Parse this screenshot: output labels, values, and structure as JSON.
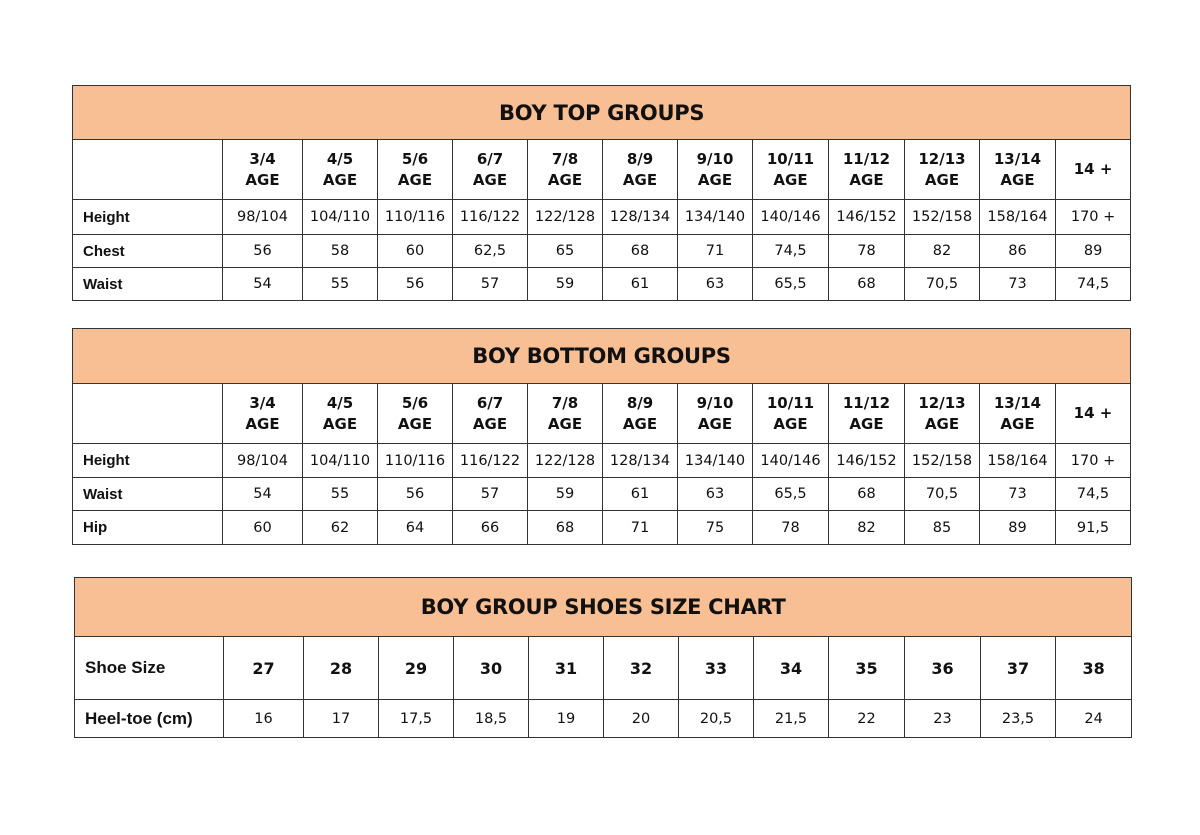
{
  "colors": {
    "header_fill": "#f8bf94",
    "border": "#333333"
  },
  "top": {
    "title": "BOY TOP GROUPS",
    "columns": [
      [
        "3/4",
        "AGE"
      ],
      [
        "4/5",
        "AGE"
      ],
      [
        "5/6",
        "AGE"
      ],
      [
        "6/7",
        "AGE"
      ],
      [
        "7/8",
        "AGE"
      ],
      [
        "8/9",
        "AGE"
      ],
      [
        "9/10",
        "AGE"
      ],
      [
        "10/11",
        "AGE"
      ],
      [
        "11/12",
        "AGE"
      ],
      [
        "12/13",
        "AGE"
      ],
      [
        "13/14",
        "AGE"
      ],
      [
        "14 +",
        ""
      ]
    ],
    "rows": [
      {
        "label": "Height",
        "values": [
          "98/104",
          "104/110",
          "110/116",
          "116/122",
          "122/128",
          "128/134",
          "134/140",
          "140/146",
          "146/152",
          "152/158",
          "158/164",
          "170 +"
        ]
      },
      {
        "label": "Chest",
        "values": [
          "56",
          "58",
          "60",
          "62,5",
          "65",
          "68",
          "71",
          "74,5",
          "78",
          "82",
          "86",
          "89"
        ]
      },
      {
        "label": "Waist",
        "values": [
          "54",
          "55",
          "56",
          "57",
          "59",
          "61",
          "63",
          "65,5",
          "68",
          "70,5",
          "73",
          "74,5"
        ]
      }
    ]
  },
  "bottom": {
    "title": "BOY BOTTOM GROUPS",
    "columns": [
      [
        "3/4",
        "AGE"
      ],
      [
        "4/5",
        "AGE"
      ],
      [
        "5/6",
        "AGE"
      ],
      [
        "6/7",
        "AGE"
      ],
      [
        "7/8",
        "AGE"
      ],
      [
        "8/9",
        "AGE"
      ],
      [
        "9/10",
        "AGE"
      ],
      [
        "10/11",
        "AGE"
      ],
      [
        "11/12",
        "AGE"
      ],
      [
        "12/13",
        "AGE"
      ],
      [
        "13/14",
        "AGE"
      ],
      [
        "14 +",
        ""
      ]
    ],
    "rows": [
      {
        "label": "Height",
        "values": [
          "98/104",
          "104/110",
          "110/116",
          "116/122",
          "122/128",
          "128/134",
          "134/140",
          "140/146",
          "146/152",
          "152/158",
          "158/164",
          "170 +"
        ]
      },
      {
        "label": "Waist",
        "values": [
          "54",
          "55",
          "56",
          "57",
          "59",
          "61",
          "63",
          "65,5",
          "68",
          "70,5",
          "73",
          "74,5"
        ]
      },
      {
        "label": "Hip",
        "values": [
          "60",
          "62",
          "64",
          "66",
          "68",
          "71",
          "75",
          "78",
          "82",
          "85",
          "89",
          "91,5"
        ]
      }
    ]
  },
  "shoes": {
    "title": "BOY GROUP SHOES SIZE CHART",
    "size_label": "Shoe Size",
    "sizes": [
      "27",
      "28",
      "29",
      "30",
      "31",
      "32",
      "33",
      "34",
      "35",
      "36",
      "37",
      "38"
    ],
    "length_label": "Heel-toe (cm)",
    "lengths": [
      "16",
      "17",
      "17,5",
      "18,5",
      "19",
      "20",
      "20,5",
      "21,5",
      "22",
      "23",
      "23,5",
      "24"
    ]
  }
}
